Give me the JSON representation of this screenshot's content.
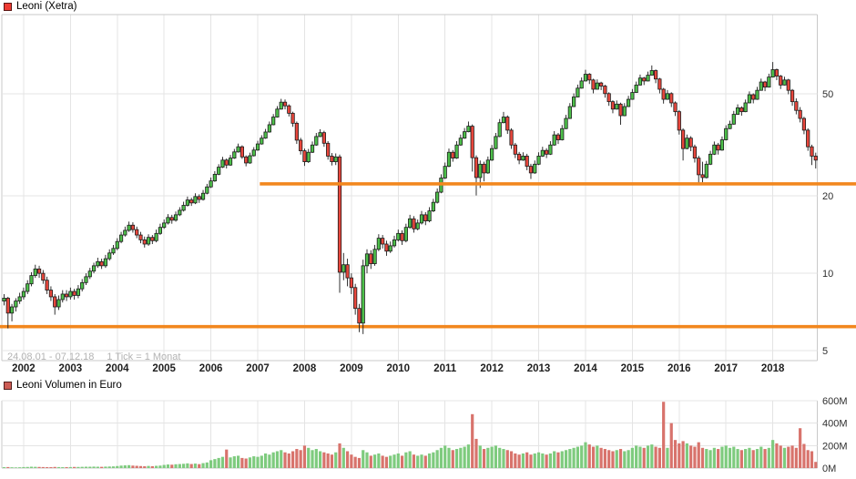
{
  "header": {
    "title": "Leoni (Xetra)"
  },
  "volume_header": {
    "title": "Leoni Volumen in Euro"
  },
  "footer_info": {
    "range": "24.08.01 - 07.12.18",
    "tick_info": "1 Tick = 1 Monat"
  },
  "colors": {
    "legend_main": "#ee3b33",
    "legend_volume": "#cd5c55",
    "candle_up": "#4dbf4a",
    "candle_down": "#e8463c",
    "candle_stroke": "#1c1c1c",
    "volume_up": "#7ecb7e",
    "volume_down": "#d8736c",
    "annotation_line": "#f2871e",
    "grid": "#e4e4e4",
    "border": "#c9c9c9",
    "tick_text": "#2e2e2e",
    "year_text": "#1f1f1f",
    "range_text": "#b3b3b3"
  },
  "chart_data": {
    "type": "candlestick+volume",
    "instrument": "Leoni (Xetra)",
    "period": "24.08.01 - 07.12.18",
    "interval": "1 Tick = 1 Monat",
    "price_scale": "log",
    "start_month": "2001-08",
    "months_total": 209,
    "price_axis": {
      "side": "right",
      "ticks": [
        50,
        20,
        10,
        5
      ]
    },
    "volume_axis": {
      "side": "right",
      "tick_labels": [
        "600M",
        "400M",
        "200M",
        "0M"
      ],
      "tick_values": [
        600,
        400,
        200,
        0
      ],
      "unit": "EUR"
    },
    "hlines": [
      {
        "price": 22.3,
        "starts_at_month_index": 66
      },
      {
        "price": 6.2,
        "starts_at_month_index": 0
      }
    ],
    "years": [
      "2002",
      "2003",
      "2004",
      "2005",
      "2006",
      "2007",
      "2008",
      "2009",
      "2010",
      "2011",
      "2012",
      "2013",
      "2014",
      "2015",
      "2016",
      "2017",
      "2018"
    ],
    "candles_format": [
      "open",
      "high",
      "low",
      "close",
      "volume_millions"
    ],
    "candles": [
      [
        7.8,
        8.3,
        7.5,
        8.0,
        8
      ],
      [
        8.0,
        8.1,
        6.1,
        7.0,
        9
      ],
      [
        7.0,
        7.6,
        6.5,
        7.4,
        7
      ],
      [
        7.4,
        8.0,
        7.1,
        7.8,
        6
      ],
      [
        7.8,
        8.4,
        7.6,
        8.1,
        7
      ],
      [
        8.1,
        8.8,
        7.9,
        8.5,
        9
      ],
      [
        8.5,
        9.4,
        8.3,
        9.1,
        10
      ],
      [
        9.1,
        10.1,
        8.9,
        9.8,
        12
      ],
      [
        9.8,
        10.8,
        9.6,
        10.4,
        11
      ],
      [
        10.4,
        10.7,
        9.6,
        10.0,
        10
      ],
      [
        10.0,
        10.3,
        9.1,
        9.4,
        9
      ],
      [
        9.4,
        9.7,
        8.3,
        8.6,
        8
      ],
      [
        8.6,
        8.9,
        7.8,
        8.1,
        8
      ],
      [
        8.1,
        8.3,
        6.9,
        7.4,
        10
      ],
      [
        7.4,
        8.2,
        7.2,
        7.9,
        9
      ],
      [
        7.9,
        8.6,
        7.7,
        8.3,
        8
      ],
      [
        8.3,
        8.6,
        7.8,
        8.1,
        8
      ],
      [
        8.1,
        8.8,
        7.9,
        8.5,
        9
      ],
      [
        8.5,
        8.7,
        7.9,
        8.2,
        10
      ],
      [
        8.2,
        9.0,
        8.0,
        8.7,
        10
      ],
      [
        8.7,
        9.5,
        8.5,
        9.2,
        11
      ],
      [
        9.2,
        10.0,
        9.0,
        9.7,
        12
      ],
      [
        9.7,
        10.5,
        9.5,
        10.2,
        12
      ],
      [
        10.2,
        11.0,
        10.0,
        10.7,
        13
      ],
      [
        10.7,
        11.5,
        10.5,
        11.1,
        12
      ],
      [
        11.1,
        11.4,
        10.4,
        10.7,
        11
      ],
      [
        10.7,
        11.8,
        10.5,
        11.4,
        13
      ],
      [
        11.4,
        12.4,
        11.2,
        12.0,
        14
      ],
      [
        12.0,
        12.9,
        11.8,
        12.5,
        15
      ],
      [
        12.5,
        13.7,
        12.3,
        13.3,
        18
      ],
      [
        13.3,
        14.5,
        13.1,
        14.1,
        22
      ],
      [
        14.1,
        15.2,
        13.9,
        14.7,
        24
      ],
      [
        14.7,
        15.9,
        14.5,
        15.4,
        26
      ],
      [
        15.4,
        15.8,
        14.4,
        14.8,
        22
      ],
      [
        14.8,
        15.2,
        13.7,
        14.1,
        20
      ],
      [
        14.1,
        14.5,
        13.1,
        13.5,
        18
      ],
      [
        13.5,
        13.9,
        12.6,
        13.0,
        16
      ],
      [
        13.0,
        14.2,
        12.8,
        13.8,
        19
      ],
      [
        13.8,
        14.1,
        13.0,
        13.4,
        17
      ],
      [
        13.4,
        14.8,
        13.2,
        14.3,
        20
      ],
      [
        14.3,
        15.6,
        14.1,
        15.1,
        22
      ],
      [
        15.1,
        16.2,
        14.9,
        15.7,
        28
      ],
      [
        15.7,
        17.0,
        15.5,
        16.5,
        32
      ],
      [
        16.5,
        16.9,
        15.6,
        16.1,
        30
      ],
      [
        16.1,
        17.4,
        15.9,
        16.9,
        34
      ],
      [
        16.9,
        18.1,
        16.7,
        17.6,
        36
      ],
      [
        17.6,
        19.0,
        17.4,
        18.4,
        38
      ],
      [
        18.4,
        19.9,
        18.2,
        19.3,
        42
      ],
      [
        19.3,
        19.7,
        18.3,
        18.8,
        36
      ],
      [
        18.8,
        20.5,
        18.6,
        19.9,
        40
      ],
      [
        19.9,
        20.3,
        18.8,
        19.4,
        35
      ],
      [
        19.4,
        21.1,
        19.2,
        20.5,
        44
      ],
      [
        20.5,
        22.3,
        20.3,
        21.7,
        50
      ],
      [
        21.7,
        23.6,
        21.5,
        22.9,
        70
      ],
      [
        22.9,
        25.0,
        22.7,
        24.3,
        80
      ],
      [
        24.3,
        26.6,
        24.1,
        25.9,
        90
      ],
      [
        25.9,
        28.4,
        25.7,
        27.6,
        100
      ],
      [
        27.6,
        28.0,
        25.6,
        26.4,
        165
      ],
      [
        26.4,
        28.9,
        26.2,
        28.1,
        95
      ],
      [
        28.1,
        30.5,
        27.9,
        29.7,
        105
      ],
      [
        29.7,
        32.0,
        29.5,
        31.1,
        110
      ],
      [
        31.1,
        31.5,
        27.9,
        28.4,
        90
      ],
      [
        28.4,
        28.8,
        26.1,
        26.9,
        85
      ],
      [
        26.9,
        29.5,
        26.7,
        28.7,
        95
      ],
      [
        28.7,
        31.0,
        28.5,
        30.2,
        105
      ],
      [
        30.2,
        32.8,
        30.0,
        31.9,
        100
      ],
      [
        31.9,
        34.5,
        31.7,
        33.6,
        110
      ],
      [
        33.6,
        36.5,
        33.4,
        35.5,
        130
      ],
      [
        35.5,
        39.0,
        35.3,
        37.9,
        120
      ],
      [
        37.9,
        41.7,
        37.7,
        40.6,
        140
      ],
      [
        40.6,
        44.8,
        40.4,
        43.6,
        150
      ],
      [
        43.6,
        47.8,
        43.4,
        46.4,
        160
      ],
      [
        46.4,
        47.5,
        43.5,
        44.9,
        140
      ],
      [
        44.9,
        45.5,
        40.8,
        42.0,
        130
      ],
      [
        42.0,
        42.6,
        37.2,
        38.4,
        150
      ],
      [
        38.4,
        39.0,
        31.9,
        33.0,
        170
      ],
      [
        33.0,
        33.7,
        29.0,
        30.0,
        160
      ],
      [
        30.0,
        30.6,
        26.2,
        27.2,
        200
      ],
      [
        27.2,
        30.5,
        26.9,
        29.6,
        180
      ],
      [
        29.6,
        32.6,
        29.4,
        31.6,
        160
      ],
      [
        31.6,
        35.2,
        31.4,
        34.1,
        170
      ],
      [
        34.1,
        36.4,
        33.9,
        35.3,
        150
      ],
      [
        35.3,
        35.9,
        31.1,
        32.1,
        140
      ],
      [
        32.1,
        32.7,
        27.7,
        28.6,
        130
      ],
      [
        28.6,
        29.4,
        26.3,
        27.2,
        120
      ],
      [
        27.2,
        29.3,
        26.4,
        28.4,
        140
      ],
      [
        28.4,
        29.0,
        8.4,
        10.1,
        220
      ],
      [
        10.1,
        12.0,
        9.4,
        10.8,
        180
      ],
      [
        10.8,
        11.4,
        8.9,
        9.6,
        150
      ],
      [
        9.6,
        10.0,
        8.3,
        8.8,
        120
      ],
      [
        8.8,
        9.1,
        6.9,
        7.3,
        100
      ],
      [
        7.3,
        7.6,
        5.9,
        6.4,
        90
      ],
      [
        6.4,
        11.3,
        5.8,
        10.7,
        160
      ],
      [
        10.7,
        12.4,
        10.0,
        11.9,
        140
      ],
      [
        11.9,
        12.3,
        10.4,
        10.9,
        110
      ],
      [
        10.9,
        12.9,
        10.7,
        12.4,
        120
      ],
      [
        12.4,
        14.2,
        12.2,
        13.7,
        130
      ],
      [
        13.7,
        14.1,
        12.5,
        13.0,
        110
      ],
      [
        13.0,
        13.4,
        11.7,
        12.2,
        100
      ],
      [
        12.2,
        13.3,
        12.0,
        12.8,
        110
      ],
      [
        12.8,
        14.0,
        12.6,
        13.5,
        120
      ],
      [
        13.5,
        14.8,
        13.3,
        14.3,
        130
      ],
      [
        14.3,
        14.7,
        12.9,
        13.4,
        110
      ],
      [
        13.4,
        15.6,
        13.2,
        15.1,
        140
      ],
      [
        15.1,
        16.9,
        14.9,
        16.3,
        150
      ],
      [
        16.3,
        16.7,
        14.4,
        14.9,
        120
      ],
      [
        14.9,
        16.2,
        14.7,
        15.7,
        110
      ],
      [
        15.7,
        17.5,
        15.5,
        16.9,
        120
      ],
      [
        16.9,
        17.3,
        15.4,
        16.0,
        110
      ],
      [
        16.0,
        18.1,
        15.8,
        17.5,
        130
      ],
      [
        17.5,
        19.5,
        17.3,
        18.9,
        140
      ],
      [
        18.9,
        21.4,
        18.7,
        20.7,
        160
      ],
      [
        20.7,
        24.3,
        20.5,
        23.5,
        180
      ],
      [
        23.5,
        27.0,
        23.3,
        26.1,
        200
      ],
      [
        26.1,
        30.6,
        25.9,
        29.6,
        180
      ],
      [
        29.6,
        30.2,
        27.2,
        28.1,
        160
      ],
      [
        28.1,
        32.7,
        27.9,
        31.6,
        170
      ],
      [
        31.6,
        34.7,
        31.4,
        33.6,
        180
      ],
      [
        33.6,
        36.8,
        33.4,
        35.6,
        190
      ],
      [
        35.6,
        39.0,
        35.4,
        37.4,
        210
      ],
      [
        37.4,
        38.0,
        24.9,
        28.2,
        480
      ],
      [
        28.2,
        28.8,
        20.1,
        23.6,
        260
      ],
      [
        23.6,
        27.5,
        21.5,
        26.6,
        200
      ],
      [
        26.6,
        27.2,
        22.8,
        24.6,
        170
      ],
      [
        24.6,
        28.5,
        24.4,
        27.6,
        180
      ],
      [
        27.6,
        31.6,
        27.4,
        30.6,
        190
      ],
      [
        30.6,
        35.2,
        30.4,
        34.1,
        200
      ],
      [
        34.1,
        39.9,
        33.9,
        38.6,
        180
      ],
      [
        38.6,
        42.5,
        38.4,
        40.6,
        170
      ],
      [
        40.6,
        41.2,
        34.9,
        36.1,
        160
      ],
      [
        36.1,
        36.7,
        30.5,
        31.6,
        150
      ],
      [
        31.6,
        32.2,
        28.1,
        29.1,
        130
      ],
      [
        29.1,
        29.7,
        26.6,
        27.6,
        120
      ],
      [
        27.6,
        29.6,
        27.4,
        28.6,
        130
      ],
      [
        28.6,
        29.2,
        25.2,
        26.1,
        140
      ],
      [
        26.1,
        26.7,
        23.3,
        24.6,
        120
      ],
      [
        24.6,
        27.5,
        24.4,
        26.6,
        130
      ],
      [
        26.6,
        29.6,
        26.4,
        28.6,
        140
      ],
      [
        28.6,
        31.1,
        28.4,
        30.1,
        130
      ],
      [
        30.1,
        30.7,
        28.1,
        29.1,
        120
      ],
      [
        29.1,
        32.7,
        28.9,
        31.6,
        130
      ],
      [
        31.6,
        35.8,
        31.4,
        34.6,
        150
      ],
      [
        34.6,
        35.2,
        31.9,
        33.1,
        140
      ],
      [
        33.1,
        37.8,
        32.9,
        36.6,
        150
      ],
      [
        36.6,
        41.4,
        36.4,
        40.1,
        160
      ],
      [
        40.1,
        46.0,
        39.9,
        44.6,
        170
      ],
      [
        44.6,
        50.2,
        44.4,
        48.6,
        180
      ],
      [
        48.6,
        54.3,
        48.4,
        52.6,
        190
      ],
      [
        52.6,
        57.9,
        52.4,
        56.1,
        200
      ],
      [
        56.1,
        62.0,
        55.9,
        59.6,
        230
      ],
      [
        59.6,
        60.2,
        54.6,
        56.6,
        210
      ],
      [
        56.6,
        57.2,
        50.2,
        52.1,
        190
      ],
      [
        52.1,
        56.9,
        51.9,
        55.1,
        200
      ],
      [
        55.1,
        55.7,
        51.7,
        53.6,
        180
      ],
      [
        53.6,
        54.2,
        48.3,
        50.1,
        170
      ],
      [
        50.1,
        50.7,
        44.9,
        46.6,
        160
      ],
      [
        46.6,
        47.2,
        42.0,
        43.6,
        150
      ],
      [
        43.6,
        47.1,
        43.4,
        45.6,
        160
      ],
      [
        45.6,
        46.2,
        37.9,
        41.1,
        170
      ],
      [
        41.1,
        46.0,
        40.9,
        44.6,
        150
      ],
      [
        44.6,
        49.1,
        44.4,
        47.6,
        160
      ],
      [
        47.6,
        52.2,
        47.4,
        50.6,
        180
      ],
      [
        50.6,
        55.8,
        50.4,
        54.1,
        200
      ],
      [
        54.1,
        59.4,
        53.9,
        57.6,
        190
      ],
      [
        57.6,
        58.2,
        54.1,
        56.1,
        180
      ],
      [
        56.1,
        61.0,
        55.9,
        59.1,
        200
      ],
      [
        59.1,
        64.5,
        58.9,
        61.6,
        210
      ],
      [
        61.6,
        62.2,
        55.0,
        57.1,
        190
      ],
      [
        57.1,
        57.7,
        50.2,
        52.1,
        180
      ],
      [
        52.1,
        52.7,
        45.8,
        47.6,
        590
      ],
      [
        47.6,
        51.7,
        47.4,
        50.1,
        180
      ],
      [
        50.1,
        50.7,
        44.4,
        46.1,
        400
      ],
      [
        46.1,
        46.7,
        41.0,
        42.6,
        250
      ],
      [
        42.6,
        43.2,
        34.7,
        36.1,
        220
      ],
      [
        36.1,
        36.7,
        27.5,
        30.6,
        240
      ],
      [
        30.6,
        34.7,
        30.4,
        33.6,
        220
      ],
      [
        33.6,
        34.2,
        29.9,
        31.1,
        200
      ],
      [
        31.1,
        31.7,
        27.0,
        28.1,
        190
      ],
      [
        28.1,
        28.7,
        22.4,
        24.2,
        230
      ],
      [
        24.2,
        27.2,
        22.6,
        23.6,
        180
      ],
      [
        23.6,
        27.4,
        23.4,
        26.6,
        170
      ],
      [
        26.6,
        30.0,
        26.4,
        29.1,
        160
      ],
      [
        29.1,
        32.6,
        28.9,
        31.6,
        180
      ],
      [
        31.6,
        32.2,
        29.0,
        30.2,
        170
      ],
      [
        30.2,
        34.1,
        30.0,
        33.1,
        190
      ],
      [
        33.1,
        37.7,
        32.9,
        36.6,
        200
      ],
      [
        36.6,
        39.3,
        36.4,
        38.1,
        180
      ],
      [
        38.1,
        42.9,
        37.9,
        41.6,
        190
      ],
      [
        41.6,
        45.5,
        41.4,
        44.1,
        170
      ],
      [
        44.1,
        44.7,
        41.1,
        42.6,
        160
      ],
      [
        42.6,
        47.5,
        42.4,
        46.1,
        170
      ],
      [
        46.1,
        51.1,
        45.9,
        49.6,
        180
      ],
      [
        49.6,
        50.2,
        45.9,
        47.6,
        160
      ],
      [
        47.6,
        53.2,
        47.4,
        51.6,
        170
      ],
      [
        51.6,
        57.3,
        51.4,
        55.6,
        190
      ],
      [
        55.6,
        56.2,
        51.2,
        53.1,
        170
      ],
      [
        53.1,
        59.9,
        52.9,
        58.1,
        180
      ],
      [
        58.1,
        66.5,
        57.9,
        62.1,
        250
      ],
      [
        62.1,
        62.7,
        56.5,
        58.6,
        220
      ],
      [
        58.6,
        59.2,
        52.2,
        54.1,
        200
      ],
      [
        54.1,
        58.3,
        53.9,
        56.6,
        180
      ],
      [
        56.6,
        57.2,
        49.8,
        51.6,
        190
      ],
      [
        51.6,
        52.2,
        44.9,
        46.6,
        200
      ],
      [
        46.6,
        48.0,
        41.6,
        43.1,
        180
      ],
      [
        43.1,
        44.4,
        38.7,
        40.1,
        355
      ],
      [
        40.1,
        40.7,
        34.8,
        36.1,
        215
      ],
      [
        36.1,
        36.7,
        30.0,
        31.1,
        160
      ],
      [
        31.1,
        31.7,
        26.4,
        28.6,
        150
      ],
      [
        28.6,
        29.5,
        25.6,
        27.6,
        55
      ]
    ]
  }
}
